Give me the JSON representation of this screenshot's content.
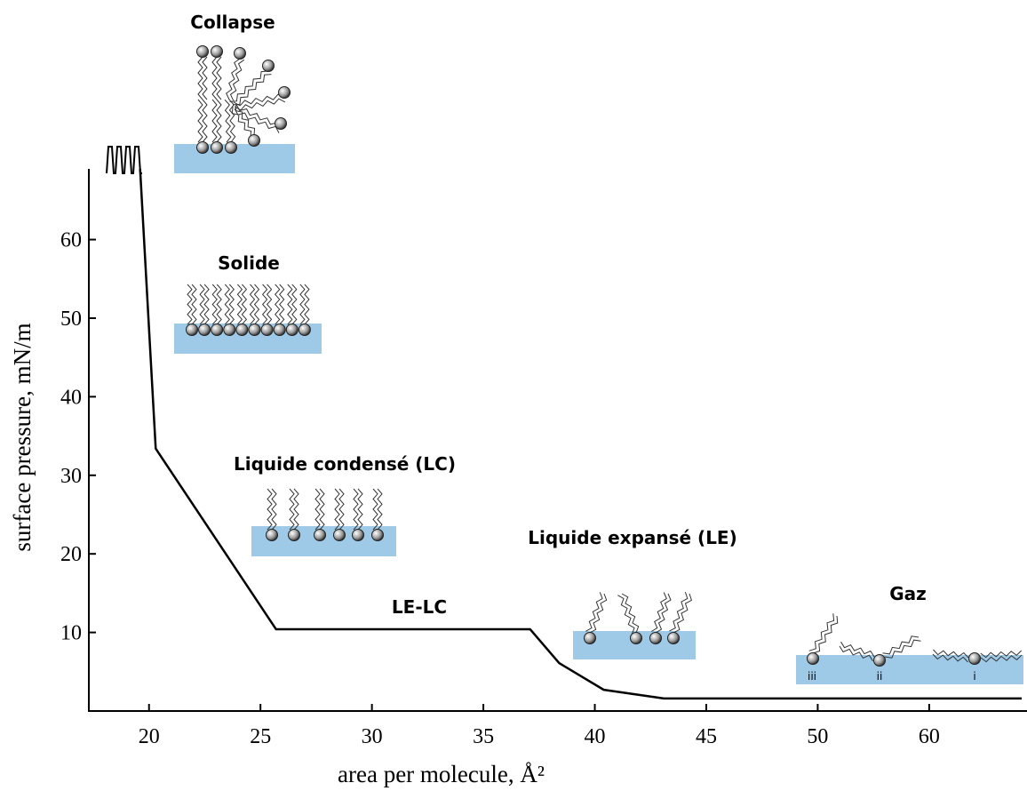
{
  "chart_data": {
    "type": "line",
    "x_label": "area per molecule, Å²",
    "y_label": "surface pressure, mN/m",
    "x": [
      19.6,
      20.3,
      25.7,
      37.1,
      38.4,
      40.4,
      43.1,
      68.3
    ],
    "series": [
      {
        "color": "#000000",
        "values": [
          69,
          33.4,
          10.4,
          10.4,
          6.1,
          2.7,
          1.6,
          1.6
        ]
      }
    ],
    "xlim": [
      17.3,
      68.3
    ],
    "xticks": [
      20,
      25,
      30,
      35,
      40,
      45,
      50,
      60
    ],
    "ylim": [
      0,
      69
    ],
    "yticks": [
      10,
      20,
      30,
      40,
      50,
      60
    ],
    "annotations": [
      "Collapse",
      "Solide",
      "Liquide condensé (LC)",
      "LE-LC",
      "Liquide expansé (LE)",
      "Gaz",
      "iii",
      "ii",
      "i"
    ]
  }
}
